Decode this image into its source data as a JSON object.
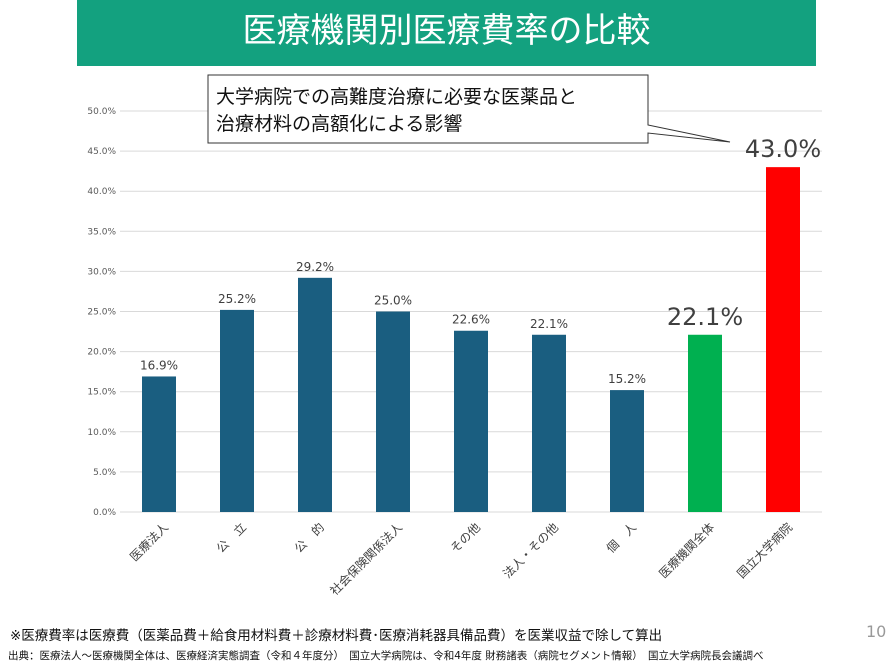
{
  "title": "医療機関別医療費率の比較",
  "callout": [
    "大学病院での高難度治療に必要な医薬品と",
    "治療材料の高額化による影響"
  ],
  "chart_data": {
    "type": "bar",
    "categories": [
      "医療法人",
      "公　立",
      "公　的",
      "社会保険関係法人",
      "その他",
      "法人・その他",
      "個　人",
      "医療機関全体",
      "国立大学病院"
    ],
    "values": [
      16.9,
      25.2,
      29.2,
      25.0,
      22.6,
      22.1,
      15.2,
      22.1,
      43.0
    ],
    "data_labels": [
      "16.9%",
      "25.2%",
      "29.2%",
      "25.0%",
      "22.6%",
      "22.1%",
      "15.2%",
      "22.1%",
      "43.0%"
    ],
    "colors": [
      "#1a5e80",
      "#1a5e80",
      "#1a5e80",
      "#1a5e80",
      "#1a5e80",
      "#1a5e80",
      "#1a5e80",
      "#00b050",
      "#ff0000"
    ],
    "ylim": [
      0,
      50
    ],
    "yticks": [
      "0.0%",
      "5.0%",
      "10.0%",
      "15.0%",
      "20.0%",
      "25.0%",
      "30.0%",
      "35.0%",
      "40.0%",
      "45.0%",
      "50.0%"
    ],
    "grid": true
  },
  "note": "※医療費率は医療費（医薬品費＋給食用材料費＋診療材料費･医療消耗器具備品費）を医業収益で除して算出",
  "source": "出典：医療法人～医療機関全体は、医療経済実態調査（令和４年度分）　国立大学病院は、令和4年度 財務諸表（病院セグメント情報）　国立大学病院長会議調べ",
  "page_number": "10"
}
